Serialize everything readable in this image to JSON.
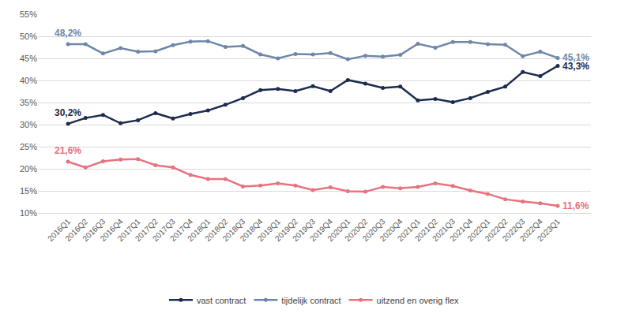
{
  "chart_data": {
    "type": "line",
    "categories": [
      "2016Q1",
      "2016Q2",
      "2016Q3",
      "2016Q4",
      "2017Q1",
      "2017Q2",
      "2017Q3",
      "2017Q4",
      "2018Q1",
      "2018Q2",
      "2018Q3",
      "2018Q4",
      "2019Q1",
      "2019Q2",
      "2019Q3",
      "2019Q4",
      "2020Q1",
      "2020Q2",
      "2020Q3",
      "2020Q4",
      "2021Q1",
      "2021Q2",
      "2021Q3",
      "2021Q4",
      "2022Q1",
      "2022Q2",
      "2022Q3",
      "2022Q4",
      "2023Q1"
    ],
    "series": [
      {
        "name": "vast contract",
        "color": "#1d2b4c",
        "marker": "circle",
        "line_style": "solid",
        "values": [
          30.2,
          31.5,
          32.2,
          30.3,
          31.0,
          32.6,
          31.4,
          32.4,
          33.2,
          34.5,
          36.0,
          37.8,
          38.1,
          37.6,
          38.7,
          37.6,
          40.1,
          39.3,
          38.3,
          38.6,
          35.5,
          35.8,
          35.1,
          36.0,
          37.4,
          38.6,
          41.9,
          41.0,
          43.3
        ],
        "value_labels": [
          "30,2%",
          null,
          null,
          null,
          null,
          null,
          null,
          null,
          null,
          null,
          null,
          null,
          null,
          null,
          null,
          null,
          null,
          null,
          null,
          null,
          null,
          null,
          null,
          null,
          null,
          null,
          null,
          null,
          "43,3%"
        ]
      },
      {
        "name": "tijdelijk contract",
        "color": "#6e87a8",
        "marker": "circle",
        "line_style": "solid",
        "values": [
          48.2,
          48.2,
          46.1,
          47.3,
          46.5,
          46.6,
          48.0,
          48.8,
          48.9,
          47.6,
          47.8,
          45.9,
          45.0,
          46.0,
          45.9,
          46.2,
          44.8,
          45.6,
          45.4,
          45.8,
          48.3,
          47.4,
          48.7,
          48.7,
          48.2,
          48.1,
          45.5,
          46.5,
          45.1
        ],
        "value_labels": [
          "48,2%",
          null,
          null,
          null,
          null,
          null,
          null,
          null,
          null,
          null,
          null,
          null,
          null,
          null,
          null,
          null,
          null,
          null,
          null,
          null,
          null,
          null,
          null,
          null,
          null,
          null,
          null,
          null,
          "45,1%"
        ]
      },
      {
        "name": "uitzend en overig flex",
        "color": "#e8727e",
        "marker": "circle",
        "line_style": "solid",
        "values": [
          21.6,
          20.3,
          21.7,
          22.1,
          22.2,
          20.8,
          20.3,
          18.6,
          17.7,
          17.7,
          16.0,
          16.2,
          16.7,
          16.2,
          15.2,
          15.8,
          14.9,
          14.8,
          15.9,
          15.6,
          15.9,
          16.7,
          16.1,
          15.1,
          14.3,
          13.1,
          12.6,
          12.2,
          11.6
        ],
        "value_labels": [
          "21,6%",
          null,
          null,
          null,
          null,
          null,
          null,
          null,
          null,
          null,
          null,
          null,
          null,
          null,
          null,
          null,
          null,
          null,
          null,
          null,
          null,
          null,
          null,
          null,
          null,
          null,
          null,
          null,
          "11,6%"
        ]
      }
    ],
    "ylim": [
      10,
      55
    ],
    "yticks": [
      {
        "value": 10,
        "label": "10%"
      },
      {
        "value": 15,
        "label": "15%"
      },
      {
        "value": 20,
        "label": "20%"
      },
      {
        "value": 25,
        "label": "25%"
      },
      {
        "value": 30,
        "label": "30%"
      },
      {
        "value": 35,
        "label": "35%"
      },
      {
        "value": 40,
        "label": "40%"
      },
      {
        "value": 45,
        "label": "45%"
      },
      {
        "value": 50,
        "label": "50%"
      },
      {
        "value": 55,
        "label": "55%"
      }
    ],
    "grid": true,
    "legend": "bottom",
    "data_labels": true
  }
}
